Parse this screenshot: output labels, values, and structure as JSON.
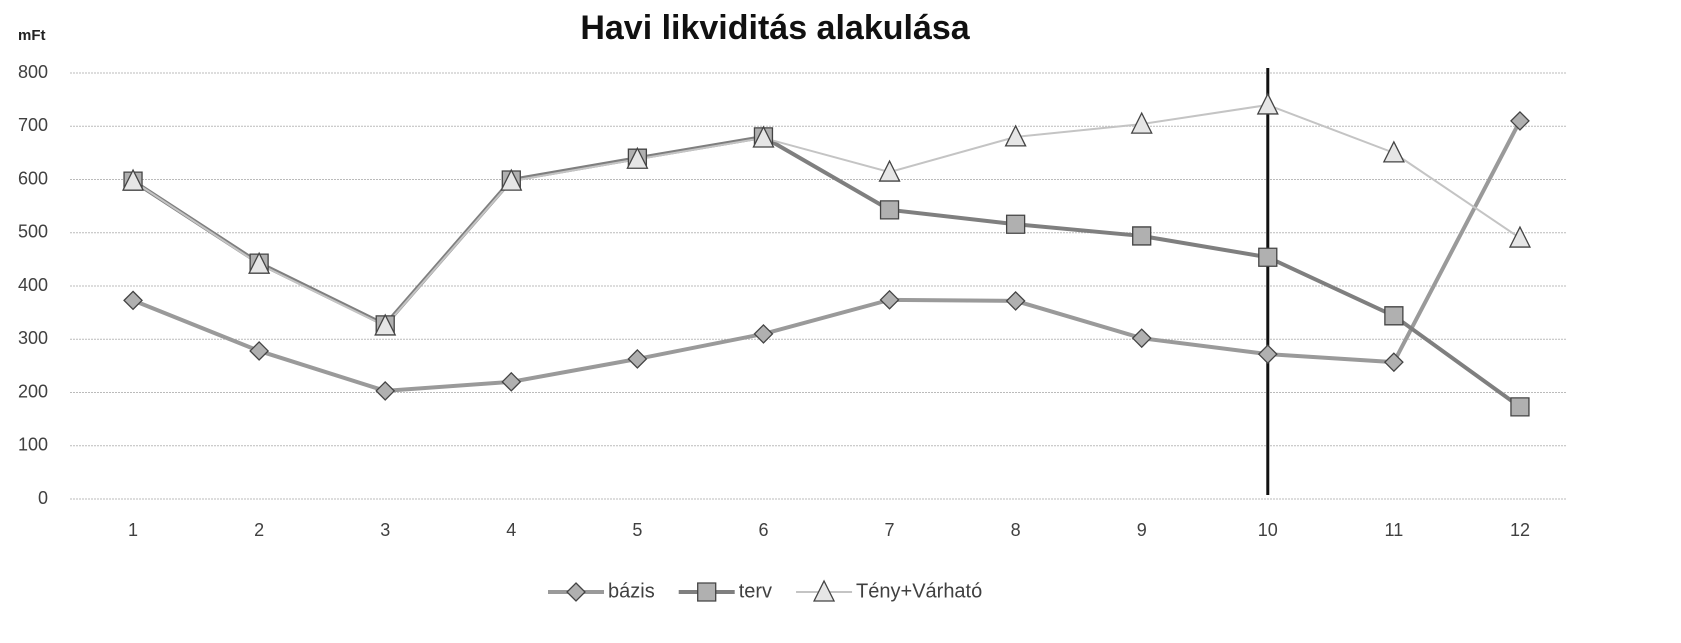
{
  "chart_data": {
    "type": "line",
    "title": "Havi likviditás alakulása",
    "y_label": "mFt",
    "x": [
      1,
      2,
      3,
      4,
      5,
      6,
      7,
      8,
      9,
      10,
      11,
      12
    ],
    "xlim": [
      0.5,
      12.5
    ],
    "xticks": [
      1,
      2,
      3,
      4,
      5,
      6,
      7,
      8,
      9,
      10,
      11,
      12
    ],
    "ylim": [
      0,
      800
    ],
    "yticks": [
      0,
      100,
      200,
      300,
      400,
      500,
      600,
      700,
      800
    ],
    "grid": true,
    "legend": "bottom",
    "vline_x": 10,
    "series": [
      {
        "name": "bázis",
        "color": "#9a9a9a",
        "marker": "diamond",
        "values": [
          373,
          278,
          203,
          220,
          263,
          310,
          374,
          372,
          302,
          272,
          257,
          710
        ]
      },
      {
        "name": "terv",
        "color": "#7f7f7f",
        "marker": "square",
        "values": [
          597,
          443,
          327,
          599,
          640,
          680,
          543,
          516,
          494,
          454,
          344,
          173
        ]
      },
      {
        "name": "Tény+Várható",
        "color": "#c4c4c4",
        "marker": "triangle",
        "values": [
          597,
          441,
          325,
          597,
          638,
          678,
          614,
          680,
          704,
          740,
          650,
          490
        ]
      }
    ]
  }
}
